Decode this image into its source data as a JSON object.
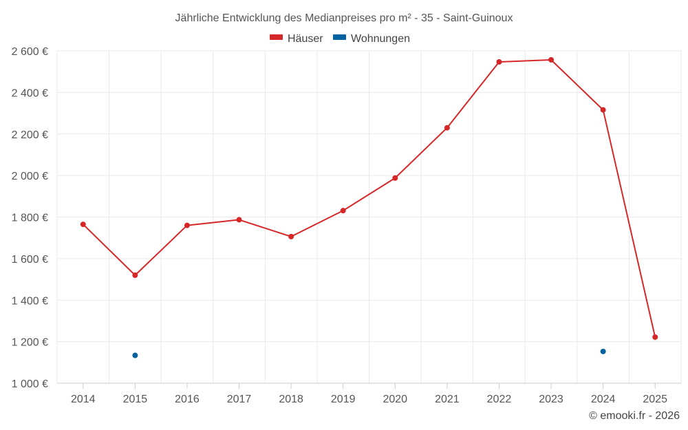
{
  "chart_data": {
    "type": "line",
    "title": "Jährliche Entwicklung des Medianpreises pro m² - 35 - Saint-Guinoux",
    "xlabel": "",
    "ylabel": "",
    "categories": [
      "2014",
      "2015",
      "2016",
      "2017",
      "2018",
      "2019",
      "2020",
      "2021",
      "2022",
      "2023",
      "2024",
      "2025"
    ],
    "ylim": [
      1000,
      2600
    ],
    "yticks": [
      1000,
      1200,
      1400,
      1600,
      1800,
      2000,
      2200,
      2400,
      2600
    ],
    "ytick_labels": [
      "1 000 €",
      "1 200 €",
      "1 400 €",
      "1 600 €",
      "1 800 €",
      "2 000 €",
      "2 200 €",
      "2 400 €",
      "2 600 €"
    ],
    "grid": true,
    "legend_position": "top-center",
    "series": [
      {
        "name": "Häuser",
        "color": "#d62728",
        "values": [
          1765,
          1520,
          1760,
          1787,
          1706,
          1831,
          1988,
          2230,
          2547,
          2557,
          2316,
          1222
        ]
      },
      {
        "name": "Wohnungen",
        "color": "#03629f",
        "values": [
          null,
          1134,
          null,
          null,
          null,
          null,
          null,
          null,
          null,
          null,
          1153,
          null
        ]
      }
    ],
    "credit": "© emooki.fr - 2026"
  }
}
